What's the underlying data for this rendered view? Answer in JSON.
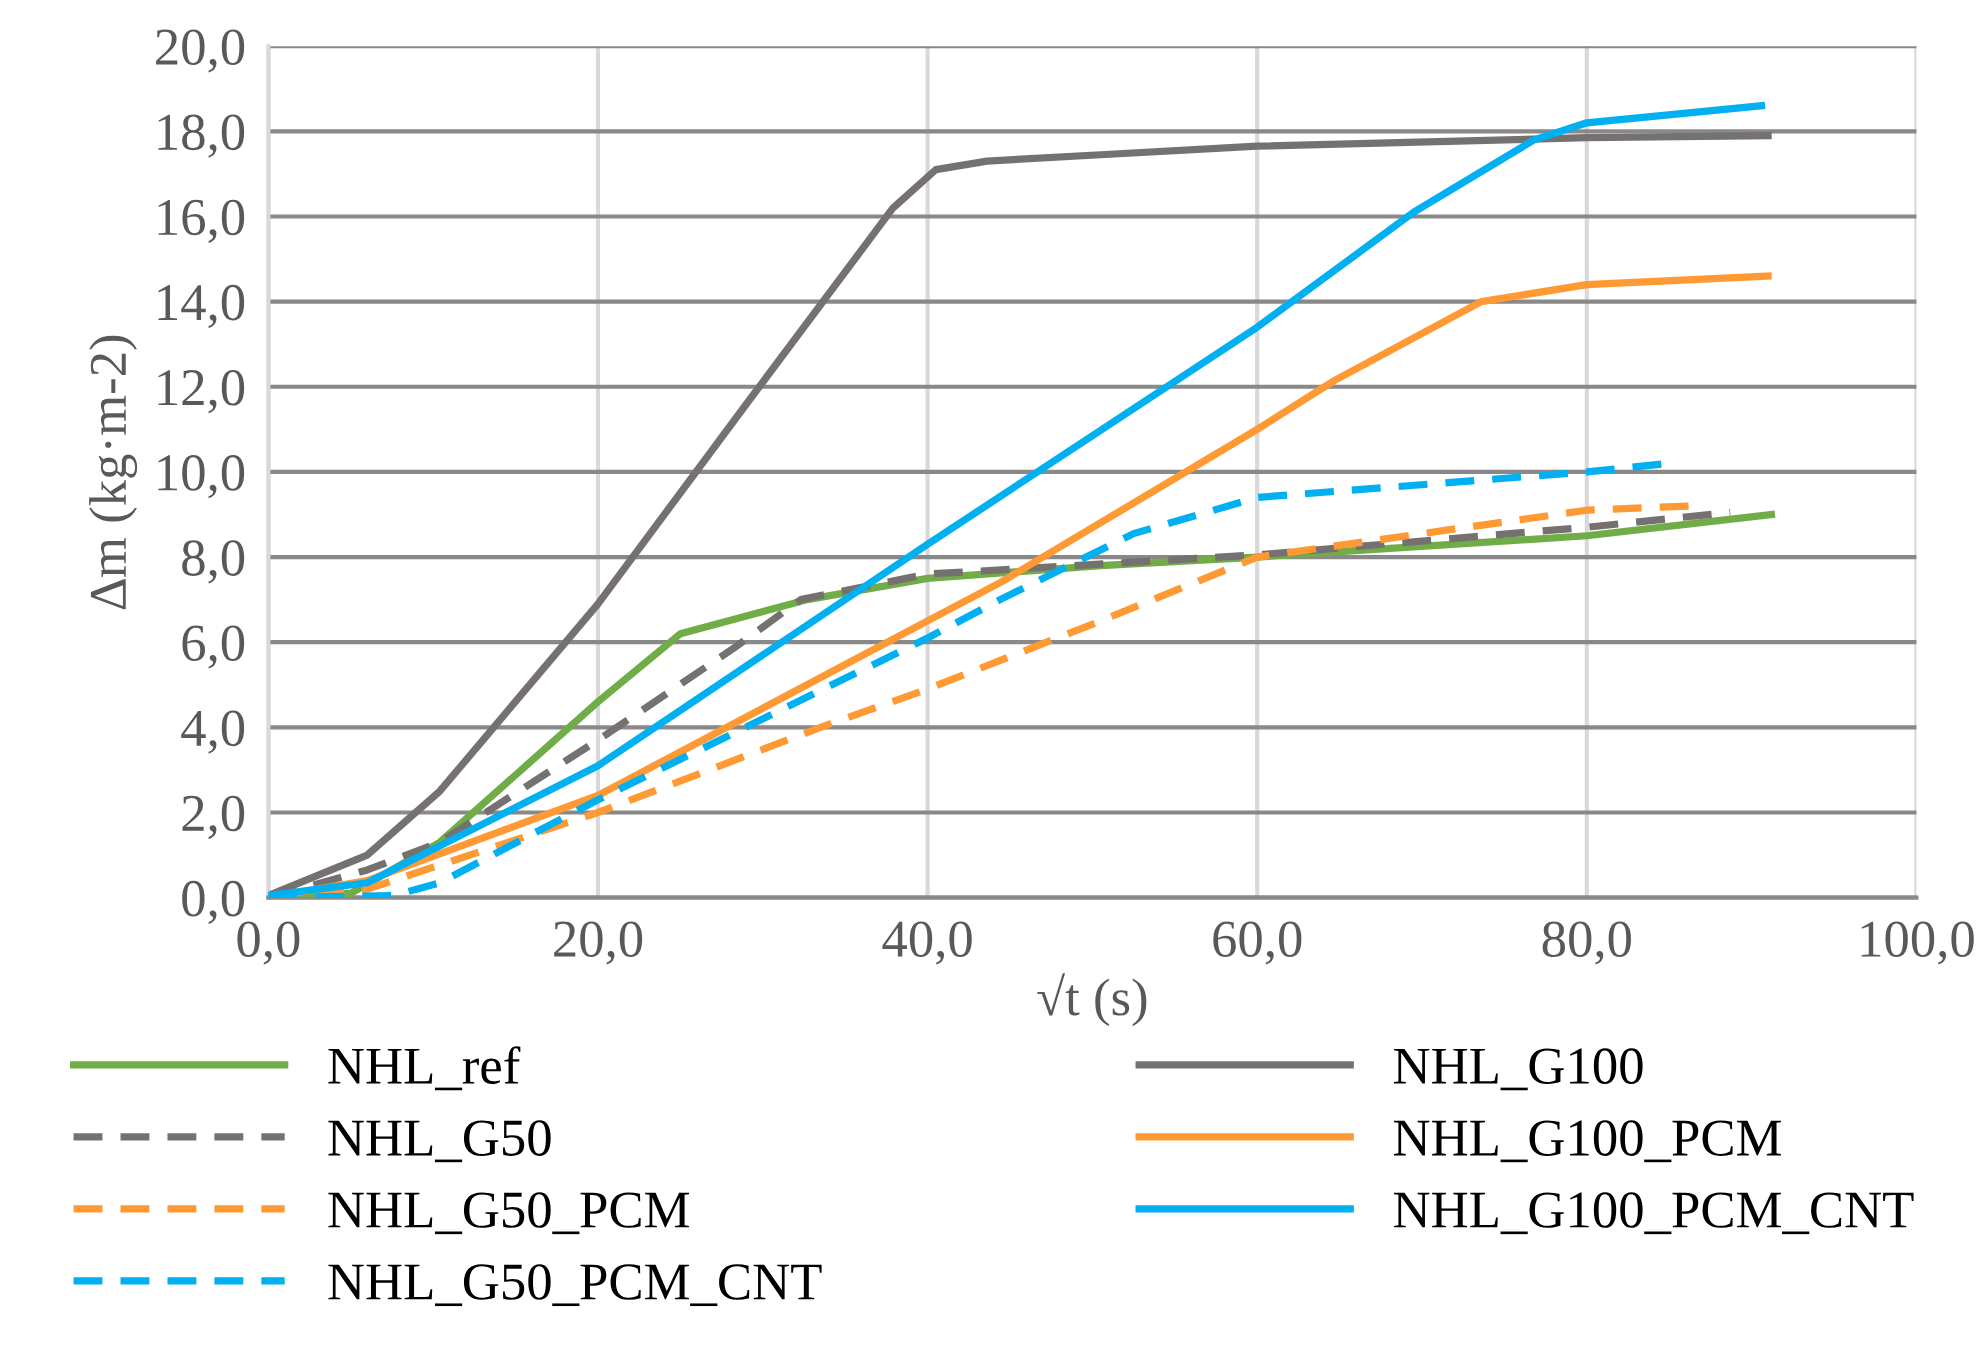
{
  "chart_data": {
    "type": "line",
    "xlabel": "√t (s)",
    "ylabel": "∆m (kg·m-2)",
    "xlim": [
      0,
      100
    ],
    "ylim": [
      0,
      20
    ],
    "xticks": [
      {
        "value": 0,
        "label": "0,0"
      },
      {
        "value": 20,
        "label": "20,0"
      },
      {
        "value": 40,
        "label": "40,0"
      },
      {
        "value": 60,
        "label": "60,0"
      },
      {
        "value": 80,
        "label": "80,0"
      },
      {
        "value": 100,
        "label": "100,0"
      }
    ],
    "yticks": [
      {
        "value": 0,
        "label": "0,0"
      },
      {
        "value": 2,
        "label": "2,0"
      },
      {
        "value": 4,
        "label": "4,0"
      },
      {
        "value": 6,
        "label": "6,0"
      },
      {
        "value": 8,
        "label": "8,0"
      },
      {
        "value": 10,
        "label": "10,0"
      },
      {
        "value": 12,
        "label": "12,0"
      },
      {
        "value": 14,
        "label": "14,0"
      },
      {
        "value": 16,
        "label": "16,0"
      },
      {
        "value": 18,
        "label": "18,0"
      },
      {
        "value": 20,
        "label": "20,0"
      }
    ],
    "grid": true,
    "legend": "bottom",
    "marker": "none",
    "series": [
      {
        "name": "NHL_ref",
        "color": "#70ad47",
        "line_style": "solid",
        "x": [
          0,
          5,
          10.4,
          20,
          25,
          32.7,
          40,
          50.5,
          60,
          80,
          91.2
        ],
        "values": [
          0,
          0.1,
          1.3,
          4.6,
          6.2,
          7.0,
          7.5,
          7.8,
          8.0,
          8.5,
          9.0
        ]
      },
      {
        "name": "NHL_G100",
        "color": "#767171",
        "line_style": "solid",
        "x": [
          0,
          6,
          10.4,
          20,
          29.4,
          37.9,
          40.5,
          43.6,
          50.5,
          60,
          80,
          91
        ],
        "values": [
          0.05,
          1.0,
          2.5,
          6.9,
          11.8,
          16.2,
          17.1,
          17.3,
          17.45,
          17.65,
          17.85,
          17.9
        ]
      },
      {
        "name": "NHL_G50",
        "color": "#767171",
        "line_style": "dashed",
        "x": [
          0,
          6,
          10.4,
          20,
          28.2,
          32.3,
          40,
          60,
          80,
          88.7
        ],
        "values": [
          0,
          0.65,
          1.3,
          3.7,
          5.85,
          7.0,
          7.6,
          8.05,
          8.7,
          9.05
        ]
      },
      {
        "name": "NHL_G100_PCM",
        "color": "#ff9933",
        "line_style": "solid",
        "x": [
          0,
          6,
          20,
          40,
          44.4,
          60,
          64.7,
          73.6,
          80,
          91
        ],
        "values": [
          0,
          0.4,
          2.4,
          6.5,
          7.4,
          11.0,
          12.15,
          14.0,
          14.4,
          14.6
        ]
      },
      {
        "name": "NHL_G50_PCM",
        "color": "#ff9933",
        "line_style": "dashed",
        "x": [
          0,
          6,
          20,
          33.5,
          40,
          50.5,
          60,
          80,
          86.3
        ],
        "values": [
          0,
          0.2,
          2.0,
          4.0,
          4.9,
          6.5,
          8.0,
          9.1,
          9.2
        ]
      },
      {
        "name": "NHL_G100_PCM_CNT",
        "color": "#00b0f0",
        "line_style": "solid",
        "x": [
          0,
          6,
          20,
          40,
          60,
          69.5,
          76.8,
          80,
          90.6
        ],
        "values": [
          0.05,
          0.35,
          3.1,
          8.3,
          13.4,
          16.1,
          17.8,
          18.2,
          18.6
        ]
      },
      {
        "name": "NHL_G50_PCM_CNT",
        "color": "#00b0f0",
        "line_style": "dashed",
        "x": [
          0,
          7.6,
          10.4,
          20,
          40,
          44.4,
          52.5,
          60,
          80,
          85
        ],
        "values": [
          0,
          0.05,
          0.35,
          2.3,
          6.1,
          7.0,
          8.55,
          9.4,
          10.0,
          10.2
        ]
      }
    ]
  }
}
